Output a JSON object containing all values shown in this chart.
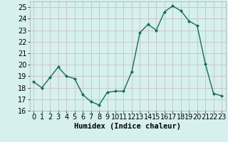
{
  "x": [
    0,
    1,
    2,
    3,
    4,
    5,
    6,
    7,
    8,
    9,
    10,
    11,
    12,
    13,
    14,
    15,
    16,
    17,
    18,
    19,
    20,
    21,
    22,
    23
  ],
  "y": [
    18.5,
    18.0,
    18.9,
    19.8,
    19.0,
    18.8,
    17.4,
    16.8,
    16.5,
    17.6,
    17.7,
    17.7,
    19.4,
    22.8,
    23.5,
    23.0,
    24.6,
    25.1,
    24.7,
    23.8,
    23.4,
    20.1,
    17.5,
    17.3
  ],
  "line_color": "#1a6b5a",
  "marker": "D",
  "marker_size": 2.0,
  "bg_color": "#d5f0ee",
  "grid_color": "#c8b8b8",
  "xlabel": "Humidex (Indice chaleur)",
  "ylim": [
    16,
    25.5
  ],
  "xlim": [
    -0.5,
    23.5
  ],
  "yticks": [
    16,
    17,
    18,
    19,
    20,
    21,
    22,
    23,
    24,
    25
  ],
  "xticks": [
    0,
    1,
    2,
    3,
    4,
    5,
    6,
    7,
    8,
    9,
    10,
    11,
    12,
    13,
    14,
    15,
    16,
    17,
    18,
    19,
    20,
    21,
    22,
    23
  ],
  "xlabel_fontsize": 7.5,
  "tick_fontsize": 7.0,
  "linewidth": 1.0
}
